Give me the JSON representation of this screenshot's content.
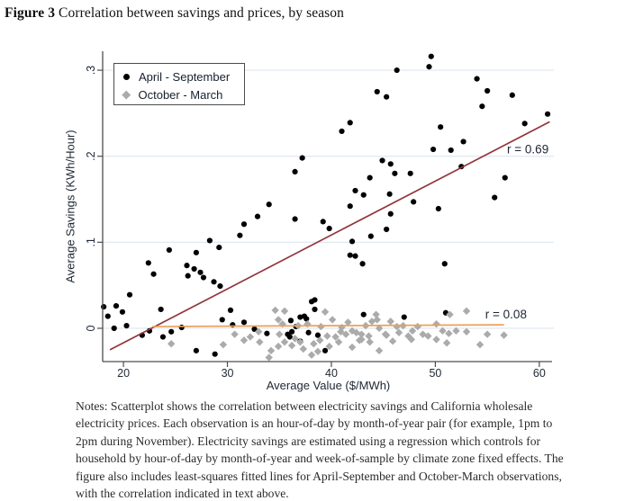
{
  "title": {
    "prefix": "Figure 3",
    "rest": " Correlation between savings and prices, by season"
  },
  "notes": "Notes: Scatterplot shows the correlation between electricity savings and California wholesale electricity prices. Each observation is an hour-of-day by month-of-year pair (for example, 1pm to 2pm during November). Electricity savings are estimated using a regression which controls for household by hour-of-day by month-of-year and week-of-sample by climate zone fixed effects. The figure also includes least-squares fitted lines for April-September and October-March observations, with the correlation indicated in text above.",
  "colors": {
    "april_september": "#000000",
    "october_march": "#ababab",
    "fit_april_september": "#90353b",
    "fit_october_march": "#e9a15c",
    "gridline": "#dde6f0",
    "axis": "#4d4d4d",
    "tick_text": "#202a35",
    "r_label_text": "#1c2634"
  },
  "chart_data": {
    "type": "scatter",
    "title": "Correlation between savings and prices, by season",
    "xlabel": "Average Value ($/MWh)",
    "ylabel": "Average Savings (KWh/Hour)",
    "xlim": [
      18,
      61.4
    ],
    "ylim": [
      -0.0387,
      0.322
    ],
    "xticks": [
      20,
      30,
      40,
      50,
      60
    ],
    "yticks": [
      {
        "value": 0,
        "label": "0"
      },
      {
        "value": 0.1,
        "label": ".1"
      },
      {
        "value": 0.2,
        "label": ".2"
      },
      {
        "value": 0.3,
        "label": ".3"
      }
    ],
    "grid": "horizontal-only",
    "legend_position": "top-left-inside",
    "series": [
      {
        "name": "April - September",
        "marker": "circle",
        "color": "#000000",
        "points": [
          [
            49.6,
            0.316
          ],
          [
            49.4,
            0.304
          ],
          [
            46.3,
            0.3
          ],
          [
            54.0,
            0.29
          ],
          [
            44.4,
            0.275
          ],
          [
            45.3,
            0.269
          ],
          [
            55.0,
            0.276
          ],
          [
            57.4,
            0.271
          ],
          [
            54.5,
            0.258
          ],
          [
            60.8,
            0.249
          ],
          [
            58.6,
            0.238
          ],
          [
            50.5,
            0.234
          ],
          [
            41.8,
            0.239
          ],
          [
            41.0,
            0.229
          ],
          [
            52.7,
            0.217
          ],
          [
            49.8,
            0.208
          ],
          [
            51.5,
            0.207
          ],
          [
            45.7,
            0.191
          ],
          [
            44.9,
            0.195
          ],
          [
            46.1,
            0.18
          ],
          [
            47.6,
            0.18
          ],
          [
            43.7,
            0.175
          ],
          [
            52.5,
            0.188
          ],
          [
            56.7,
            0.175
          ],
          [
            42.3,
            0.16
          ],
          [
            43.1,
            0.155
          ],
          [
            45.6,
            0.156
          ],
          [
            47.9,
            0.147
          ],
          [
            41.8,
            0.142
          ],
          [
            55.7,
            0.152
          ],
          [
            50.3,
            0.139
          ],
          [
            45.7,
            0.133
          ],
          [
            45.3,
            0.115
          ],
          [
            43.8,
            0.107
          ],
          [
            42.0,
            0.101
          ],
          [
            37.2,
            0.198
          ],
          [
            36.5,
            0.182
          ],
          [
            34.0,
            0.144
          ],
          [
            32.9,
            0.13
          ],
          [
            36.5,
            0.127
          ],
          [
            39.2,
            0.124
          ],
          [
            39.8,
            0.116
          ],
          [
            31.6,
            0.121
          ],
          [
            31.2,
            0.108
          ],
          [
            28.3,
            0.102
          ],
          [
            29.2,
            0.094
          ],
          [
            24.4,
            0.091
          ],
          [
            27.0,
            0.088
          ],
          [
            22.4,
            0.076
          ],
          [
            26.1,
            0.073
          ],
          [
            26.8,
            0.069
          ],
          [
            27.4,
            0.065
          ],
          [
            27.7,
            0.059
          ],
          [
            26.2,
            0.061
          ],
          [
            28.7,
            0.054
          ],
          [
            29.3,
            0.049
          ],
          [
            22.9,
            0.063
          ],
          [
            41.8,
            0.085
          ],
          [
            42.3,
            0.084
          ],
          [
            43.0,
            0.075
          ],
          [
            50.9,
            0.075
          ],
          [
            20.6,
            0.039
          ],
          [
            23.6,
            0.022
          ],
          [
            19.3,
            0.026
          ],
          [
            19.9,
            0.019
          ],
          [
            18.5,
            0.014
          ],
          [
            18.1,
            0.025
          ],
          [
            20.3,
            0.003
          ],
          [
            19.1,
            0.0
          ],
          [
            21.8,
            -0.008
          ],
          [
            22.5,
            -0.003
          ],
          [
            23.8,
            -0.01
          ],
          [
            24.6,
            -0.004
          ],
          [
            25.6,
            0.001
          ],
          [
            38.1,
            0.031
          ],
          [
            38.4,
            0.033
          ],
          [
            38.4,
            0.022
          ],
          [
            37.4,
            0.014
          ],
          [
            37.0,
            0.013
          ],
          [
            37.6,
            0.011
          ],
          [
            36.1,
            0.009
          ],
          [
            36.6,
            0.002
          ],
          [
            36.2,
            -0.004
          ],
          [
            35.8,
            -0.007
          ],
          [
            36.0,
            -0.01
          ],
          [
            37.0,
            -0.015
          ],
          [
            37.8,
            -0.005
          ],
          [
            38.7,
            -0.008
          ],
          [
            43.1,
            0.016
          ],
          [
            51.0,
            0.018
          ],
          [
            47.0,
            0.013
          ],
          [
            29.5,
            0.01
          ],
          [
            30.5,
            0.004
          ],
          [
            31.6,
            0.007
          ],
          [
            32.6,
            -0.001
          ],
          [
            33.8,
            -0.006
          ],
          [
            39.4,
            -0.026
          ],
          [
            28.8,
            -0.03
          ],
          [
            27.0,
            -0.026
          ],
          [
            30.3,
            0.021
          ]
        ]
      },
      {
        "name": "October - March",
        "marker": "diamond",
        "color": "#ababab",
        "points": [
          [
            24.6,
            -0.018
          ],
          [
            29.6,
            -0.019
          ],
          [
            34.6,
            0.021
          ],
          [
            35.5,
            0.02
          ],
          [
            34.9,
            0.01
          ],
          [
            35.3,
            0.005
          ],
          [
            35.0,
            -0.007
          ],
          [
            35.5,
            -0.016
          ],
          [
            37.0,
            -0.016
          ],
          [
            38.3,
            -0.018
          ],
          [
            39.4,
            0.019
          ],
          [
            40.1,
            0.01
          ],
          [
            40.4,
            -0.01
          ],
          [
            40.9,
            -0.004
          ],
          [
            41.4,
            -0.007
          ],
          [
            42.0,
            -0.003
          ],
          [
            42.4,
            -0.005
          ],
          [
            42.9,
            -0.013
          ],
          [
            44.3,
            0.016
          ],
          [
            44.4,
            0.01
          ],
          [
            45.2,
            -0.007
          ],
          [
            40.7,
            -0.016
          ],
          [
            37.3,
            -0.024
          ],
          [
            38.7,
            -0.027
          ],
          [
            39.8,
            -0.021
          ],
          [
            42.0,
            -0.022
          ],
          [
            43.7,
            -0.016
          ],
          [
            38.1,
            -0.031
          ],
          [
            34.9,
            -0.021
          ],
          [
            36.2,
            -0.02
          ],
          [
            53.0,
            0.02
          ],
          [
            51.4,
            0.016
          ],
          [
            45.7,
            0.008
          ],
          [
            46.3,
            0.002
          ],
          [
            43.9,
            0.008
          ],
          [
            42.9,
            -0.007
          ],
          [
            43.6,
            -0.009
          ],
          [
            45.3,
            -0.008
          ],
          [
            46.5,
            -0.005
          ],
          [
            47.8,
            -0.003
          ],
          [
            48.8,
            -0.007
          ],
          [
            50.1,
            0.005
          ],
          [
            50.7,
            -0.003
          ],
          [
            51.3,
            -0.006
          ],
          [
            52.0,
            -0.003
          ],
          [
            53.0,
            -0.004
          ],
          [
            50.1,
            -0.013
          ],
          [
            51.1,
            -0.017
          ],
          [
            47.7,
            -0.013
          ],
          [
            42.7,
            -0.014
          ],
          [
            56.6,
            -0.008
          ],
          [
            54.3,
            -0.019
          ],
          [
            55.0,
            -0.007
          ],
          [
            36.8,
            0.003
          ],
          [
            37.7,
            0.005
          ],
          [
            39.0,
            0.002
          ],
          [
            39.6,
            -0.009
          ],
          [
            41.6,
            0.007
          ],
          [
            44.6,
            0.0
          ],
          [
            46.9,
            0.003
          ],
          [
            47.4,
            -0.009
          ],
          [
            34.2,
            -0.026
          ],
          [
            33.1,
            -0.016
          ],
          [
            31.6,
            -0.014
          ],
          [
            30.7,
            -0.007
          ],
          [
            34.0,
            -0.034
          ],
          [
            44.6,
            -0.026
          ],
          [
            32.2,
            -0.01
          ],
          [
            33.0,
            -0.004
          ],
          [
            36.5,
            -0.012
          ],
          [
            38.9,
            -0.014
          ],
          [
            41.0,
            0.001
          ],
          [
            43.3,
            0.003
          ],
          [
            45.9,
            -0.015
          ],
          [
            48.3,
            0.002
          ],
          [
            49.3,
            -0.009
          ]
        ]
      }
    ],
    "fit_lines": [
      {
        "series": "April - September",
        "color": "#90353b",
        "x": [
          18.7,
          61.0
        ],
        "y": [
          -0.025,
          0.24
        ],
        "label": "r = 0.69",
        "label_at": [
          56.9,
          0.208
        ]
      },
      {
        "series": "October - March",
        "color": "#e9a15c",
        "x": [
          22.8,
          56.6
        ],
        "y": [
          0.002,
          0.004
        ],
        "label": "r = 0.08",
        "label_at": [
          54.8,
          0.016
        ]
      }
    ]
  }
}
